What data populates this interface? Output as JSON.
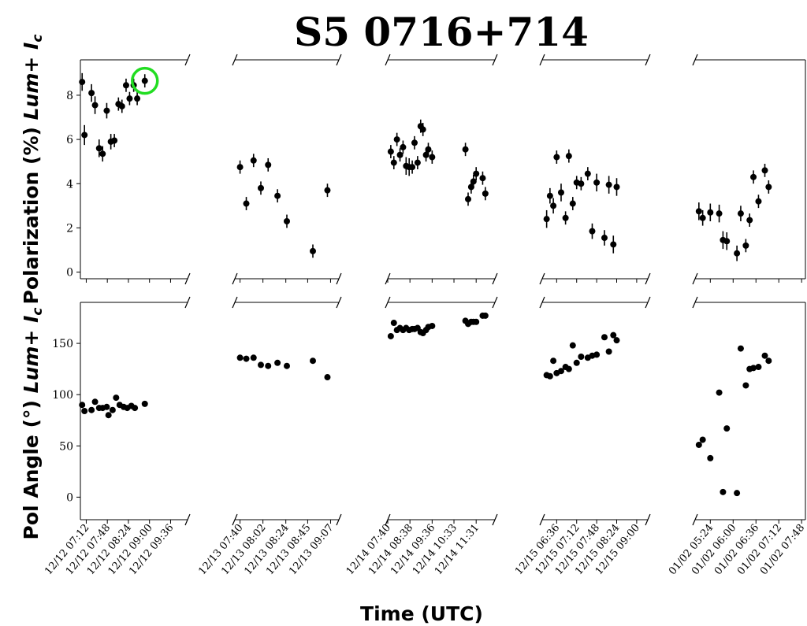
{
  "chart_data": {
    "type": "scatter",
    "title": "S5 0716+714",
    "xlabel": "Time (UTC)",
    "rows": [
      {
        "ylabel_main": "Polarization (%) ",
        "ylabel_italic": "Lum+ I",
        "ylabel_sub": "c",
        "ylim": [
          -0.3,
          9.6
        ],
        "yticks": [
          0,
          2,
          4,
          6,
          8
        ]
      },
      {
        "ylabel_main": "Pol Angle (°) ",
        "ylabel_italic": "Lum+ I",
        "ylabel_sub": "c",
        "ylim": [
          -22,
          190
        ],
        "yticks": [
          0,
          50,
          100,
          150
        ]
      }
    ],
    "panels": [
      {
        "xlim": [
          "12/12 07:02",
          "12/12 10:05"
        ],
        "ticks": [
          "12/12 07:12",
          "12/12 07:48",
          "12/12 08:24",
          "12/12 09:00",
          "12/12 09:36"
        ],
        "pol": [
          {
            "t": "12/12 07:05",
            "v": 8.6,
            "e": 0.4
          },
          {
            "t": "12/12 07:09",
            "v": 6.2,
            "e": 0.45
          },
          {
            "t": "12/12 07:21",
            "v": 8.1,
            "e": 0.4
          },
          {
            "t": "12/12 07:27",
            "v": 7.55,
            "e": 0.4
          },
          {
            "t": "12/12 07:34",
            "v": 5.6,
            "e": 0.4
          },
          {
            "t": "12/12 07:40",
            "v": 5.35,
            "e": 0.35
          },
          {
            "t": "12/12 07:47",
            "v": 7.3,
            "e": 0.35
          },
          {
            "t": "12/12 07:54",
            "v": 5.9,
            "e": 0.35
          },
          {
            "t": "12/12 08:00",
            "v": 5.95,
            "e": 0.3
          },
          {
            "t": "12/12 08:07",
            "v": 7.6,
            "e": 0.3
          },
          {
            "t": "12/12 08:13",
            "v": 7.5,
            "e": 0.3
          },
          {
            "t": "12/12 08:20",
            "v": 8.45,
            "e": 0.3
          },
          {
            "t": "12/12 08:26",
            "v": 7.85,
            "e": 0.3
          },
          {
            "t": "12/12 08:33",
            "v": 8.45,
            "e": 0.3
          },
          {
            "t": "12/12 08:39",
            "v": 7.85,
            "e": 0.3
          },
          {
            "t": "12/12 08:52",
            "v": 8.65,
            "e": 0.3
          }
        ],
        "angle": [
          {
            "t": "12/12 07:05",
            "v": 90
          },
          {
            "t": "12/12 07:09",
            "v": 84
          },
          {
            "t": "12/12 07:21",
            "v": 85
          },
          {
            "t": "12/12 07:27",
            "v": 93
          },
          {
            "t": "12/12 07:34",
            "v": 87
          },
          {
            "t": "12/12 07:40",
            "v": 87
          },
          {
            "t": "12/12 07:47",
            "v": 88
          },
          {
            "t": "12/12 07:50",
            "v": 80
          },
          {
            "t": "12/12 07:57",
            "v": 85
          },
          {
            "t": "12/12 08:03",
            "v": 97
          },
          {
            "t": "12/12 08:09",
            "v": 90
          },
          {
            "t": "12/12 08:16",
            "v": 88
          },
          {
            "t": "12/12 08:22",
            "v": 87
          },
          {
            "t": "12/12 08:29",
            "v": 89
          },
          {
            "t": "12/12 08:35",
            "v": 87
          },
          {
            "t": "12/12 08:52",
            "v": 91
          }
        ],
        "highlight_index": 15
      },
      {
        "xlim": [
          "12/13 07:35",
          "12/13 09:15"
        ],
        "ticks": [
          "12/13 07:40",
          "12/13 08:02",
          "12/13 08:24",
          "12/13 08:45",
          "12/13 09:07"
        ],
        "pol": [
          {
            "t": "12/13 07:40",
            "v": 4.75,
            "e": 0.3
          },
          {
            "t": "12/13 07:46",
            "v": 3.1,
            "e": 0.3
          },
          {
            "t": "12/13 07:53",
            "v": 5.05,
            "e": 0.3
          },
          {
            "t": "12/13 08:00",
            "v": 3.8,
            "e": 0.3
          },
          {
            "t": "12/13 08:07",
            "v": 4.85,
            "e": 0.3
          },
          {
            "t": "12/13 08:16",
            "v": 3.45,
            "e": 0.3
          },
          {
            "t": "12/13 08:25",
            "v": 2.3,
            "e": 0.3
          },
          {
            "t": "12/13 08:50",
            "v": 0.95,
            "e": 0.3
          },
          {
            "t": "12/13 09:04",
            "v": 3.7,
            "e": 0.3
          }
        ],
        "angle": [
          {
            "t": "12/13 07:40",
            "v": 136
          },
          {
            "t": "12/13 07:46",
            "v": 135
          },
          {
            "t": "12/13 07:53",
            "v": 136
          },
          {
            "t": "12/13 08:00",
            "v": 129
          },
          {
            "t": "12/13 08:07",
            "v": 128
          },
          {
            "t": "12/13 08:16",
            "v": 131
          },
          {
            "t": "12/13 08:25",
            "v": 128
          },
          {
            "t": "12/13 08:50",
            "v": 133
          },
          {
            "t": "12/13 09:04",
            "v": 117
          }
        ]
      },
      {
        "xlim": [
          "12/14 07:40",
          "12/14 12:20"
        ],
        "ticks": [
          "12/14 07:40",
          "12/14 08:38",
          "12/14 09:36",
          "12/14 10:33",
          "12/14 11:31"
        ],
        "pol": [
          {
            "t": "12/14 07:48",
            "v": 5.45,
            "e": 0.3
          },
          {
            "t": "12/14 07:56",
            "v": 4.95,
            "e": 0.3
          },
          {
            "t": "12/14 08:04",
            "v": 6.0,
            "e": 0.3
          },
          {
            "t": "12/14 08:12",
            "v": 5.3,
            "e": 0.3
          },
          {
            "t": "12/14 08:20",
            "v": 5.65,
            "e": 0.3
          },
          {
            "t": "12/14 08:28",
            "v": 4.8,
            "e": 0.4
          },
          {
            "t": "12/14 08:36",
            "v": 4.75,
            "e": 0.4
          },
          {
            "t": "12/14 08:44",
            "v": 4.75,
            "e": 0.3
          },
          {
            "t": "12/14 08:50",
            "v": 5.85,
            "e": 0.3
          },
          {
            "t": "12/14 08:58",
            "v": 4.95,
            "e": 0.3
          },
          {
            "t": "12/14 09:06",
            "v": 6.6,
            "e": 0.3
          },
          {
            "t": "12/14 09:12",
            "v": 6.45,
            "e": 0.3
          },
          {
            "t": "12/14 09:20",
            "v": 5.3,
            "e": 0.3
          },
          {
            "t": "12/14 09:26",
            "v": 5.55,
            "e": 0.3
          },
          {
            "t": "12/14 09:36",
            "v": 5.2,
            "e": 0.3
          },
          {
            "t": "12/14 11:03",
            "v": 5.55,
            "e": 0.3
          },
          {
            "t": "12/14 11:10",
            "v": 3.3,
            "e": 0.3
          },
          {
            "t": "12/14 11:18",
            "v": 3.85,
            "e": 0.3
          },
          {
            "t": "12/14 11:24",
            "v": 4.1,
            "e": 0.3
          },
          {
            "t": "12/14 11:31",
            "v": 4.45,
            "e": 0.3
          },
          {
            "t": "12/14 11:48",
            "v": 4.25,
            "e": 0.3
          },
          {
            "t": "12/14 11:55",
            "v": 3.55,
            "e": 0.3
          }
        ],
        "angle": [
          {
            "t": "12/14 07:48",
            "v": 157
          },
          {
            "t": "12/14 07:56",
            "v": 170
          },
          {
            "t": "12/14 08:04",
            "v": 163
          },
          {
            "t": "12/14 08:12",
            "v": 165
          },
          {
            "t": "12/14 08:20",
            "v": 163
          },
          {
            "t": "12/14 08:28",
            "v": 165
          },
          {
            "t": "12/14 08:36",
            "v": 163
          },
          {
            "t": "12/14 08:44",
            "v": 164
          },
          {
            "t": "12/14 08:50",
            "v": 164
          },
          {
            "t": "12/14 08:58",
            "v": 165
          },
          {
            "t": "12/14 09:06",
            "v": 161
          },
          {
            "t": "12/14 09:12",
            "v": 160
          },
          {
            "t": "12/14 09:20",
            "v": 163
          },
          {
            "t": "12/14 09:26",
            "v": 166
          },
          {
            "t": "12/14 09:36",
            "v": 167
          },
          {
            "t": "12/14 11:03",
            "v": 172
          },
          {
            "t": "12/14 11:10",
            "v": 169
          },
          {
            "t": "12/14 11:18",
            "v": 171
          },
          {
            "t": "12/14 11:24",
            "v": 171
          },
          {
            "t": "12/14 11:31",
            "v": 171
          },
          {
            "t": "12/14 11:48",
            "v": 177
          },
          {
            "t": "12/14 11:55",
            "v": 177
          }
        ]
      },
      {
        "xlim": [
          "12/15 06:10",
          "12/15 09:20"
        ],
        "ticks": [
          "12/15 06:36",
          "12/15 07:12",
          "12/15 07:48",
          "12/15 08:24",
          "12/15 09:00"
        ],
        "pol": [
          {
            "t": "12/15 06:18",
            "v": 2.4,
            "e": 0.4
          },
          {
            "t": "12/15 06:24",
            "v": 3.45,
            "e": 0.35
          },
          {
            "t": "12/15 06:30",
            "v": 3.0,
            "e": 0.35
          },
          {
            "t": "12/15 06:36",
            "v": 5.2,
            "e": 0.3
          },
          {
            "t": "12/15 06:44",
            "v": 3.6,
            "e": 0.4
          },
          {
            "t": "12/15 06:52",
            "v": 2.45,
            "e": 0.3
          },
          {
            "t": "12/15 06:58",
            "v": 5.25,
            "e": 0.3
          },
          {
            "t": "12/15 07:05",
            "v": 3.1,
            "e": 0.3
          },
          {
            "t": "12/15 07:12",
            "v": 4.05,
            "e": 0.3
          },
          {
            "t": "12/15 07:20",
            "v": 4.0,
            "e": 0.3
          },
          {
            "t": "12/15 07:32",
            "v": 4.45,
            "e": 0.3
          },
          {
            "t": "12/15 07:40",
            "v": 1.85,
            "e": 0.35
          },
          {
            "t": "12/15 07:48",
            "v": 4.05,
            "e": 0.4
          },
          {
            "t": "12/15 08:02",
            "v": 1.55,
            "e": 0.35
          },
          {
            "t": "12/15 08:10",
            "v": 3.95,
            "e": 0.4
          },
          {
            "t": "12/15 08:18",
            "v": 1.25,
            "e": 0.4
          },
          {
            "t": "12/15 08:24",
            "v": 3.85,
            "e": 0.4
          }
        ],
        "angle": [
          {
            "t": "12/15 06:18",
            "v": 119
          },
          {
            "t": "12/15 06:24",
            "v": 118
          },
          {
            "t": "12/15 06:30",
            "v": 133
          },
          {
            "t": "12/15 06:36",
            "v": 121
          },
          {
            "t": "12/15 06:44",
            "v": 123
          },
          {
            "t": "12/15 06:52",
            "v": 127
          },
          {
            "t": "12/15 06:58",
            "v": 125
          },
          {
            "t": "12/15 07:05",
            "v": 148
          },
          {
            "t": "12/15 07:12",
            "v": 131
          },
          {
            "t": "12/15 07:20",
            "v": 137
          },
          {
            "t": "12/15 07:32",
            "v": 136
          },
          {
            "t": "12/15 07:40",
            "v": 138
          },
          {
            "t": "12/15 07:48",
            "v": 139
          },
          {
            "t": "12/15 08:02",
            "v": 156
          },
          {
            "t": "12/15 08:10",
            "v": 142
          },
          {
            "t": "12/15 08:18",
            "v": 158
          },
          {
            "t": "12/15 08:24",
            "v": 153
          }
        ]
      },
      {
        "xlim": [
          "01/02 05:00",
          "01/02 07:54"
        ],
        "ticks": [
          "01/02 05:24",
          "01/02 06:00",
          "01/02 06:36",
          "01/02 07:12",
          "01/02 07:48"
        ],
        "pol": [
          {
            "t": "01/02 05:06",
            "v": 2.75,
            "e": 0.4
          },
          {
            "t": "01/02 05:12",
            "v": 2.45,
            "e": 0.35
          },
          {
            "t": "01/02 05:24",
            "v": 2.7,
            "e": 0.4
          },
          {
            "t": "01/02 05:38",
            "v": 2.65,
            "e": 0.4
          },
          {
            "t": "01/02 05:44",
            "v": 1.45,
            "e": 0.4
          },
          {
            "t": "01/02 05:50",
            "v": 1.4,
            "e": 0.4
          },
          {
            "t": "01/02 06:06",
            "v": 0.85,
            "e": 0.35
          },
          {
            "t": "01/02 06:12",
            "v": 2.65,
            "e": 0.35
          },
          {
            "t": "01/02 06:20",
            "v": 1.2,
            "e": 0.3
          },
          {
            "t": "01/02 06:26",
            "v": 2.35,
            "e": 0.3
          },
          {
            "t": "01/02 06:32",
            "v": 4.3,
            "e": 0.3
          },
          {
            "t": "01/02 06:40",
            "v": 3.2,
            "e": 0.3
          },
          {
            "t": "01/02 06:50",
            "v": 4.6,
            "e": 0.3
          },
          {
            "t": "01/02 06:56",
            "v": 3.85,
            "e": 0.3
          }
        ],
        "angle": [
          {
            "t": "01/02 05:06",
            "v": 51
          },
          {
            "t": "01/02 05:12",
            "v": 56
          },
          {
            "t": "01/02 05:24",
            "v": 38
          },
          {
            "t": "01/02 05:38",
            "v": 102
          },
          {
            "t": "01/02 05:44",
            "v": 5
          },
          {
            "t": "01/02 05:50",
            "v": 67
          },
          {
            "t": "01/02 06:06",
            "v": 4
          },
          {
            "t": "01/02 06:12",
            "v": 145
          },
          {
            "t": "01/02 06:20",
            "v": 109
          },
          {
            "t": "01/02 06:26",
            "v": 125
          },
          {
            "t": "01/02 06:32",
            "v": 126
          },
          {
            "t": "01/02 06:40",
            "v": 127
          },
          {
            "t": "01/02 06:50",
            "v": 138
          },
          {
            "t": "01/02 06:56",
            "v": 133
          }
        ]
      }
    ],
    "highlight_color": "#22dd22",
    "marker_color": "#000000"
  }
}
